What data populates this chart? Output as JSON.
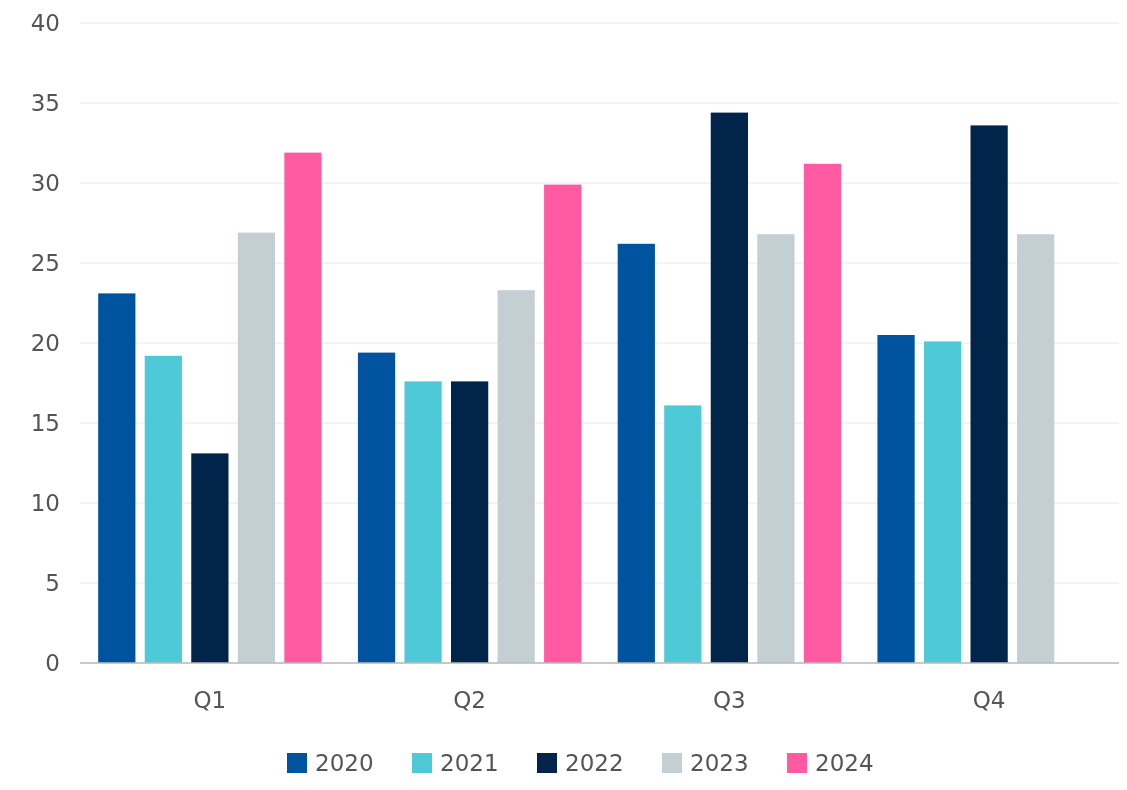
{
  "chart_data": {
    "type": "bar",
    "categories": [
      "Q1",
      "Q2",
      "Q3",
      "Q4"
    ],
    "series": [
      {
        "name": "2020",
        "color": "#00539f",
        "values": [
          23.1,
          19.4,
          26.2,
          20.5
        ]
      },
      {
        "name": "2021",
        "color": "#4ec9d8",
        "values": [
          19.2,
          17.6,
          16.1,
          20.1
        ]
      },
      {
        "name": "2022",
        "color": "#00244a",
        "values": [
          13.1,
          17.6,
          34.4,
          33.6
        ]
      },
      {
        "name": "2023",
        "color": "#c4cfd4",
        "values": [
          26.9,
          23.3,
          26.8,
          26.8
        ]
      },
      {
        "name": "2024",
        "color": "#ff5aa2",
        "values": [
          31.9,
          29.9,
          31.2,
          null
        ]
      }
    ],
    "ylim": [
      0,
      40
    ],
    "yticks": [
      0,
      5,
      10,
      15,
      20,
      25,
      30,
      35,
      40
    ],
    "grid": "y",
    "legend": "bottom"
  }
}
